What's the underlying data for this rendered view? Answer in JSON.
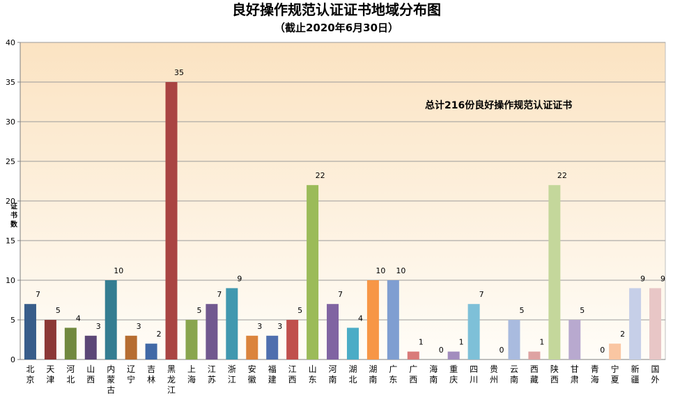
{
  "chart_data": {
    "type": "bar",
    "title": "良好操作规范认证证书地域分布图",
    "subtitle": "（截止2020年6月30日）",
    "annotation": "总计216份良好操作规范认证证书",
    "ylabel": "证书数",
    "xlabel": "",
    "ylim": [
      0,
      40
    ],
    "yticks": [
      0,
      5,
      10,
      15,
      20,
      25,
      30,
      35,
      40
    ],
    "grid": true,
    "categories": [
      "北京",
      "天津",
      "河北",
      "山西",
      "内蒙古",
      "辽宁",
      "吉林",
      "黑龙江",
      "上海",
      "江苏",
      "浙江",
      "安徽",
      "福建",
      "江西",
      "山东",
      "河南",
      "湖北",
      "湖南",
      "广东",
      "广西",
      "海南",
      "重庆",
      "四川",
      "贵州",
      "云南",
      "西藏",
      "陕西",
      "甘肃",
      "青海",
      "宁夏",
      "新疆",
      "国外"
    ],
    "values": [
      7,
      5,
      4,
      3,
      10,
      3,
      2,
      35,
      5,
      7,
      9,
      3,
      3,
      5,
      22,
      7,
      4,
      10,
      10,
      1,
      0,
      1,
      7,
      0,
      5,
      1,
      22,
      5,
      0,
      2,
      9,
      9
    ],
    "colors": [
      "#385D8A",
      "#8C3836",
      "#71893F",
      "#5C4776",
      "#357D91",
      "#B66D31",
      "#4169A6",
      "#A94442",
      "#89A54E",
      "#71588F",
      "#4198AF",
      "#DB843D",
      "#4F6FAE",
      "#C0504D",
      "#9BBB59",
      "#8064A2",
      "#4BACC6",
      "#F79646",
      "#7F9ED1",
      "#D97B7A",
      "#C4D79B",
      "#A28DBE",
      "#7EC0D8",
      "#F9B680",
      "#A9BBDF",
      "#DEA3A2",
      "#C4D79B",
      "#B8A9CF",
      "#A5D4E3",
      "#FAC6A2",
      "#C6CFE8",
      "#E8C6C6"
    ]
  }
}
